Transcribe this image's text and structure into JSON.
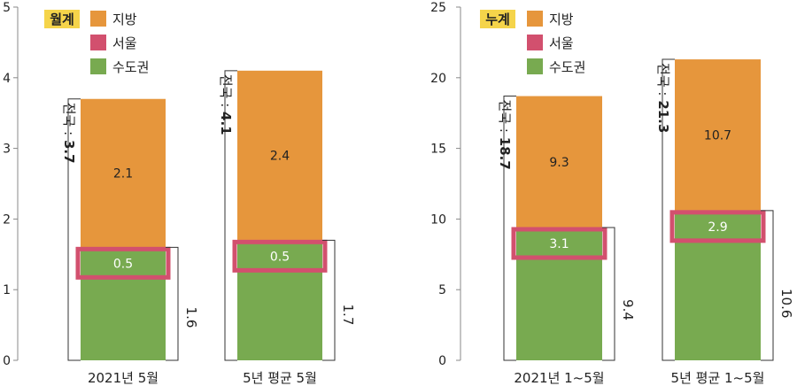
{
  "chart_data": [
    {
      "type": "bar",
      "badge": "월계",
      "legend": [
        {
          "label": "지방",
          "color": "#E6963C"
        },
        {
          "label": "서울",
          "color": "#D2506E"
        },
        {
          "label": "수도권",
          "color": "#78AA50"
        }
      ],
      "ylim": [
        0,
        5
      ],
      "yticks": [
        "0",
        "1",
        "2",
        "3",
        "4",
        "5"
      ],
      "categories": [
        "2021년 5월",
        "5년 평균 5월"
      ],
      "series": [
        {
          "name": "수도권",
          "values": [
            1.6,
            1.7
          ]
        },
        {
          "name": "지방",
          "values": [
            2.1,
            2.4
          ]
        }
      ],
      "seoul": [
        "0.5",
        "0.5"
      ],
      "region_labels": [
        "2.1",
        "2.4"
      ],
      "capital_totals": [
        "1.6",
        "1.7"
      ],
      "total_prefix": "전국 : ",
      "totals": [
        "3.7",
        "4.1"
      ]
    },
    {
      "type": "bar",
      "badge": "누계",
      "legend": [
        {
          "label": "지방",
          "color": "#E6963C"
        },
        {
          "label": "서울",
          "color": "#D2506E"
        },
        {
          "label": "수도권",
          "color": "#78AA50"
        }
      ],
      "ylim": [
        0,
        25
      ],
      "yticks": [
        "0",
        "5",
        "10",
        "15",
        "20",
        "25"
      ],
      "categories": [
        "2021년 1~5월",
        "5년 평균 1~5월"
      ],
      "series": [
        {
          "name": "수도권",
          "values": [
            9.4,
            10.6
          ]
        },
        {
          "name": "지방",
          "values": [
            9.3,
            10.7
          ]
        }
      ],
      "seoul": [
        "3.1",
        "2.9"
      ],
      "region_labels": [
        "9.3",
        "10.7"
      ],
      "capital_totals": [
        "9.4",
        "10.6"
      ],
      "total_prefix": "전국 : ",
      "totals": [
        "18.7",
        "21.3"
      ]
    }
  ]
}
